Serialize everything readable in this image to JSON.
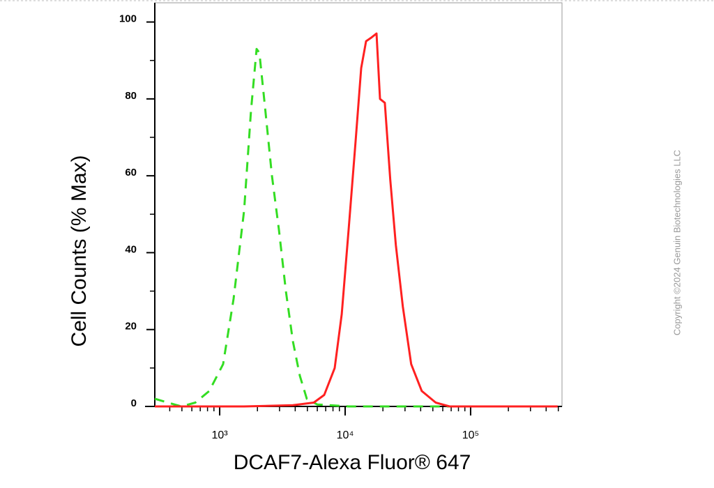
{
  "chart_data": {
    "type": "line",
    "xlabel": "DCAF7-Alexa Fluor® 647",
    "ylabel": "Cell Counts (% Max)",
    "xscale": "log",
    "xlim": [
      304,
      535000
    ],
    "ylim": [
      0,
      105
    ],
    "xticks": [
      {
        "value": 1000,
        "label": "10³"
      },
      {
        "value": 10000,
        "label": "10⁴"
      },
      {
        "value": 100000,
        "label": "10⁵"
      }
    ],
    "yticks": [
      0,
      20,
      40,
      60,
      80,
      100
    ],
    "grid": false,
    "series": [
      {
        "color": "#33dd22",
        "dashed": true,
        "x": [
          304,
          495,
          639,
          826,
          1066,
          1291,
          1565,
          1778,
          1969,
          2073,
          2296,
          2610,
          2967,
          3371,
          3831,
          4355,
          4947,
          5995,
          10660,
          38300,
          494000
        ],
        "values": [
          2,
          0,
          1,
          4,
          11,
          28,
          51,
          77,
          93,
          92,
          78,
          60,
          46,
          30,
          17,
          8,
          2,
          0.5,
          0,
          0,
          0
        ]
      },
      {
        "color": "#ff2020",
        "dashed": false,
        "x": [
          304,
          1565,
          3831,
          5623,
          6813,
          8254,
          9390,
          10660,
          12115,
          13420,
          14680,
          16270,
          17780,
          18960,
          20700,
          22900,
          25350,
          28800,
          33600,
          40800,
          52700,
          68000,
          494000
        ],
        "values": [
          0,
          0,
          0.3,
          1,
          3,
          10,
          24,
          46,
          69,
          88,
          95,
          96,
          97,
          80,
          79,
          59,
          42,
          26,
          11,
          4,
          1,
          0,
          0
        ]
      }
    ]
  },
  "watermark": "Copyright ©2024 Genuin Biotechnologies LLC"
}
